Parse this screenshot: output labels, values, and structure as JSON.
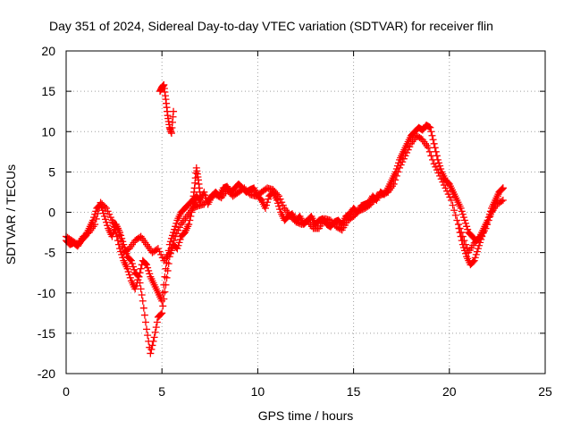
{
  "chart_data": {
    "type": "scatter",
    "title": "Day 351 of 2024, Sidereal Day-to-day VTEC variation (SDTVAR) for receiver flin",
    "xlabel": "GPS time / hours",
    "ylabel": "SDTVAR / TECUs",
    "xlim": [
      0,
      25
    ],
    "ylim": [
      -20,
      20
    ],
    "xticks": [
      0,
      5,
      10,
      15,
      20,
      25
    ],
    "yticks": [
      -20,
      -15,
      -10,
      -5,
      0,
      5,
      10,
      15,
      20
    ],
    "grid": true,
    "marker": "+",
    "colors": {
      "series": "#ff0000",
      "grid": "#a0a0a0",
      "frame": "#000000"
    },
    "series": [
      {
        "name": "SDTVAR",
        "traces": [
          {
            "x": [
              0.0,
              0.2,
              0.4,
              0.6,
              0.8,
              1.0,
              1.2,
              1.4,
              1.6,
              1.8,
              2.0,
              2.2,
              2.4,
              2.6,
              2.8,
              3.0,
              3.2,
              3.4,
              3.6,
              3.8,
              4.0,
              4.2,
              4.4,
              4.6,
              4.8,
              5.0,
              5.2,
              5.4,
              5.6,
              5.8,
              6.0,
              6.2,
              6.4,
              6.6,
              6.8,
              7.0,
              7.2,
              7.4,
              7.6,
              7.8,
              8.0,
              8.2,
              8.4,
              8.6,
              8.8,
              9.0,
              9.2,
              9.4,
              9.6,
              9.8,
              10.0,
              10.2,
              10.4,
              10.6,
              10.8,
              11.0,
              11.2,
              11.4,
              11.6,
              11.8,
              12.0,
              12.2,
              12.4,
              12.6,
              12.8,
              13.0,
              13.2,
              13.4,
              13.6,
              13.8,
              14.0,
              14.2,
              14.4,
              14.6,
              14.8,
              15.0,
              15.2,
              15.4,
              15.6,
              15.8,
              16.0,
              16.2,
              16.4,
              16.6,
              16.8,
              17.0,
              17.2,
              17.4,
              17.6,
              17.8,
              18.0,
              18.2,
              18.4,
              18.6,
              18.8,
              19.0,
              19.2,
              19.4,
              19.6,
              19.8,
              20.0,
              20.2,
              20.4,
              20.6,
              20.8,
              21.0,
              21.2,
              21.4,
              21.6,
              21.8,
              22.0,
              22.2,
              22.4,
              22.6,
              22.8
            ],
            "y": [
              -3.5,
              -4.0,
              -3.8,
              -4.2,
              -3.5,
              -3.0,
              -2.0,
              -1.0,
              0.5,
              1.0,
              -0.5,
              -2.0,
              -3.0,
              -1.5,
              -2.5,
              -4.0,
              -5.5,
              -6.0,
              -7.5,
              -8.0,
              -6.0,
              -6.5,
              -8.0,
              -9.0,
              -10.0,
              -11.0,
              -7.0,
              -4.0,
              -2.5,
              -1.0,
              0.0,
              0.5,
              1.0,
              1.5,
              2.0,
              1.5,
              2.5,
              1.0,
              2.0,
              2.5,
              2.0,
              3.0,
              3.2,
              2.5,
              3.0,
              3.5,
              3.0,
              2.5,
              2.8,
              3.0,
              2.0,
              1.5,
              0.5,
              2.0,
              2.5,
              1.5,
              0.0,
              -1.0,
              -0.5,
              -0.2,
              -1.0,
              -0.5,
              -1.5,
              -1.0,
              -0.5,
              -1.5,
              -1.0,
              -0.8,
              -1.5,
              -1.8,
              -1.2,
              -1.0,
              -1.5,
              -0.5,
              -0.2,
              0.5,
              0.0,
              0.8,
              1.0,
              1.2,
              2.0,
              1.5,
              2.5,
              2.2,
              3.0,
              4.0,
              5.0,
              6.5,
              7.5,
              8.5,
              9.5,
              10.0,
              10.5,
              10.2,
              10.8,
              10.5,
              8.5,
              6.5,
              5.0,
              4.0,
              3.5,
              2.5,
              1.5,
              0.5,
              -1.0,
              -2.5,
              -3.0,
              -3.5,
              -3.0,
              -2.0,
              -1.0,
              0.5,
              1.5,
              2.5,
              3.0
            ]
          },
          {
            "x": [
              0.0,
              0.3,
              0.6,
              0.9,
              1.2,
              1.5,
              1.8,
              2.1,
              2.4,
              2.7,
              3.0,
              3.3,
              3.6,
              3.9,
              4.2,
              4.5,
              4.8,
              5.1,
              5.4,
              5.7,
              6.0,
              6.3,
              6.6,
              6.9,
              7.2,
              7.5,
              7.8,
              8.1,
              8.4,
              8.7,
              9.0,
              9.3,
              9.6,
              9.9,
              10.2,
              10.5,
              10.8,
              11.1,
              11.4,
              11.7,
              12.0,
              12.3,
              12.6,
              12.9,
              13.2,
              13.5,
              13.8,
              14.1,
              14.4,
              14.7,
              15.0,
              15.3,
              15.6,
              15.9,
              16.2,
              16.5,
              16.8,
              17.1,
              17.4,
              17.7,
              18.0,
              18.3,
              18.6,
              18.9,
              19.2,
              19.5,
              19.8,
              20.1,
              20.4,
              20.7,
              21.0,
              21.3,
              21.6,
              21.9,
              22.2,
              22.5,
              22.8
            ],
            "y": [
              -3.0,
              -3.5,
              -4.0,
              -3.0,
              -2.5,
              -1.5,
              1.2,
              0.5,
              -1.0,
              -2.0,
              -5.0,
              -4.5,
              -3.5,
              -3.0,
              -4.0,
              -5.0,
              -4.5,
              -6.0,
              -5.0,
              -3.0,
              -1.5,
              -0.5,
              0.5,
              0.8,
              1.0,
              1.8,
              2.2,
              1.8,
              2.8,
              2.0,
              2.5,
              3.0,
              2.2,
              2.0,
              2.5,
              3.0,
              2.8,
              2.0,
              0.5,
              -0.5,
              -1.2,
              -1.5,
              -1.0,
              -2.0,
              -2.0,
              -0.8,
              -1.0,
              -1.8,
              -2.2,
              -1.0,
              -0.5,
              0.2,
              0.5,
              1.0,
              2.0,
              2.2,
              2.5,
              3.5,
              5.5,
              7.0,
              8.5,
              9.5,
              9.0,
              8.0,
              6.0,
              4.5,
              3.0,
              1.5,
              -1.0,
              -3.0,
              -5.0,
              -3.8,
              -3.2,
              -2.0,
              0.0,
              1.0,
              1.5
            ]
          },
          {
            "x": [
              2.4,
              2.6,
              2.8,
              3.0,
              3.2,
              3.4,
              3.6,
              3.8,
              4.0,
              4.2,
              4.4,
              4.6,
              4.8,
              5.0,
              5.2,
              5.4,
              5.6,
              5.8,
              6.0,
              6.2,
              6.4,
              6.6,
              6.8
            ],
            "y": [
              -1.0,
              -2.5,
              -4.5,
              -6.0,
              -7.0,
              -8.5,
              -9.5,
              -8.0,
              -11.0,
              -14.5,
              -17.5,
              -15.5,
              -13.0,
              -12.5,
              -9.0,
              -5.5,
              -4.0,
              -4.5,
              -3.0,
              -2.5,
              -1.5,
              0.5,
              1.5
            ]
          },
          {
            "x": [
              4.9,
              5.0,
              5.1,
              5.2,
              5.3,
              5.4,
              5.5,
              5.6
            ],
            "y": [
              15.0,
              15.5,
              15.8,
              14.0,
              12.0,
              10.5,
              9.8,
              12.5
            ]
          },
          {
            "x": [
              6.6,
              6.7,
              6.8,
              6.9,
              7.0
            ],
            "y": [
              1.0,
              3.0,
              5.5,
              4.0,
              2.0
            ]
          },
          {
            "x": [
              20.5,
              20.7,
              20.9,
              21.1,
              21.3,
              21.5,
              21.7,
              22.0,
              22.3,
              22.6,
              22.8
            ],
            "y": [
              -2.0,
              -4.0,
              -5.5,
              -6.5,
              -6.0,
              -4.5,
              -3.0,
              -1.0,
              0.5,
              2.5,
              3.0
            ]
          }
        ]
      }
    ]
  }
}
